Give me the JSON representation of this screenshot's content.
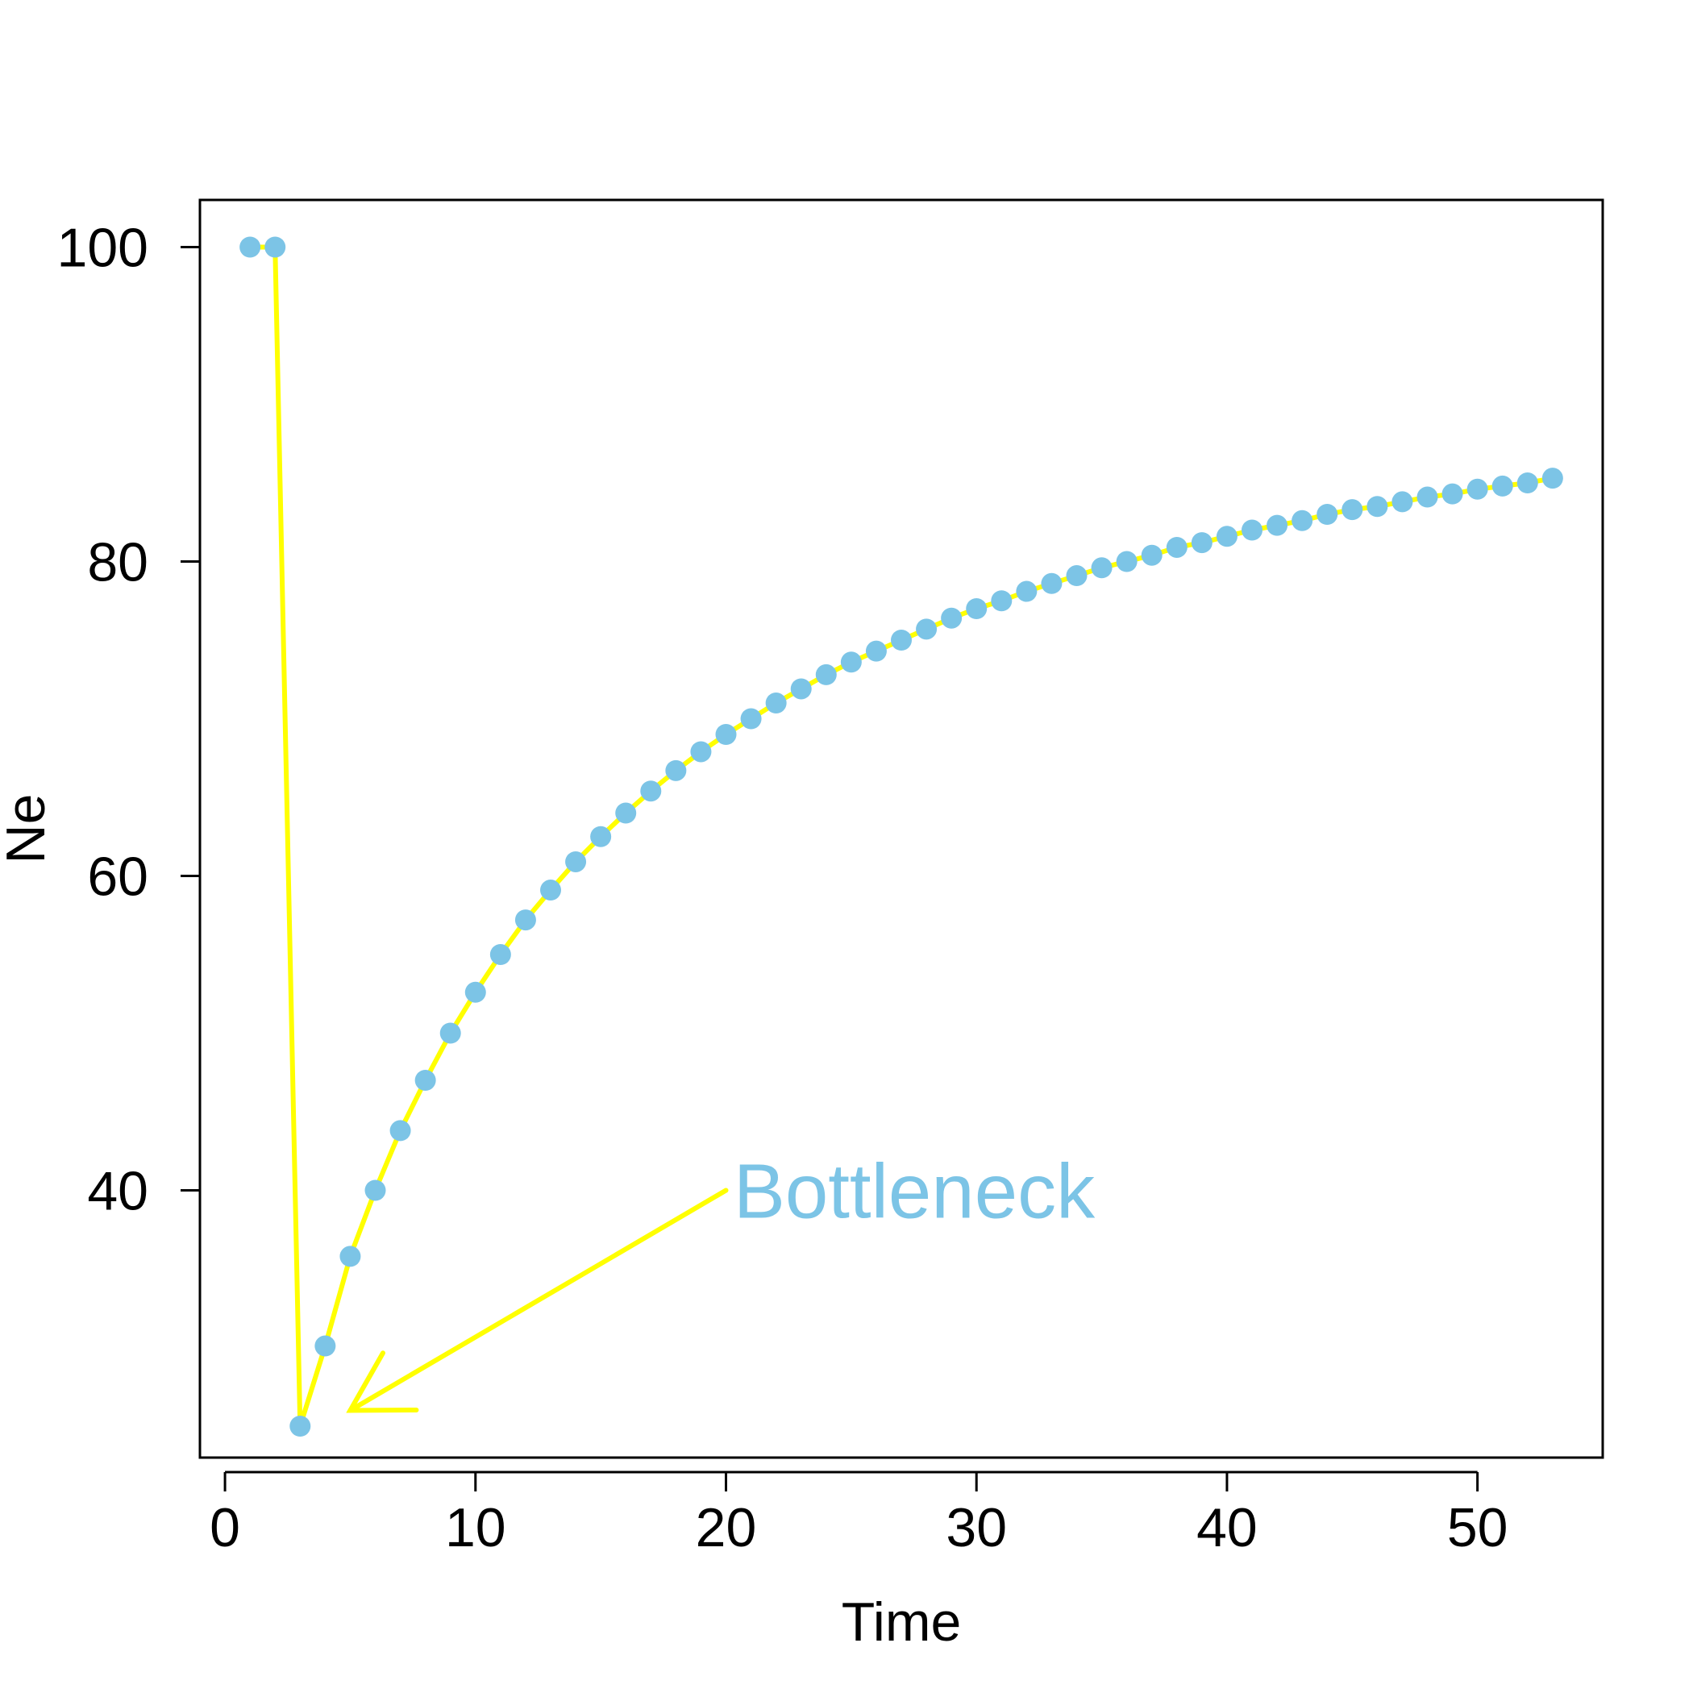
{
  "chart_data": {
    "type": "line",
    "title": "",
    "xlabel": "Time",
    "ylabel": "Ne",
    "xlim": [
      -1,
      55
    ],
    "ylim": [
      23,
      103
    ],
    "x_ticks": [
      0,
      10,
      20,
      30,
      40,
      50
    ],
    "x_tick_labels": [
      "0",
      "10",
      "20",
      "30",
      "40",
      "50"
    ],
    "y_ticks": [
      40,
      60,
      80,
      100
    ],
    "y_tick_labels": [
      "40",
      "60",
      "80",
      "100"
    ],
    "grid": false,
    "legend": "none",
    "line_color": "#FFFF00",
    "marker_color": "#7CC4E6",
    "series": [
      {
        "x": [
          1,
          2,
          3,
          4,
          5,
          6,
          7,
          8,
          9,
          10,
          11,
          12,
          13,
          14,
          15,
          16,
          17,
          18,
          19,
          20,
          21,
          22,
          23,
          24,
          25,
          26,
          27,
          28,
          29,
          30,
          31,
          32,
          33,
          34,
          35,
          36,
          37,
          38,
          39,
          40,
          41,
          42,
          43,
          44,
          45,
          46,
          47,
          48,
          49,
          50,
          51,
          52,
          53
        ],
        "values": [
          100,
          100,
          25,
          30.1,
          35.8,
          40.0,
          43.8,
          47.0,
          50.0,
          52.6,
          55.0,
          57.2,
          59.1,
          60.9,
          62.5,
          64.0,
          65.4,
          66.7,
          67.9,
          69.0,
          70.0,
          71.0,
          71.9,
          72.8,
          73.6,
          74.3,
          75.0,
          75.7,
          76.4,
          77.0,
          77.5,
          78.1,
          78.6,
          79.1,
          79.6,
          80.0,
          80.4,
          80.9,
          81.2,
          81.6,
          82.0,
          82.3,
          82.6,
          83.0,
          83.3,
          83.5,
          83.8,
          84.1,
          84.3,
          84.6,
          84.8,
          85.0,
          85.3
        ]
      }
    ],
    "annotations": [
      {
        "text": "Bottleneck",
        "color": "#7CC4E6",
        "arrow_color": "#FFFF00",
        "arrow_from": [
          20,
          40
        ],
        "arrow_to": [
          5,
          26
        ],
        "text_at": [
          20.3,
          40
        ]
      }
    ]
  }
}
